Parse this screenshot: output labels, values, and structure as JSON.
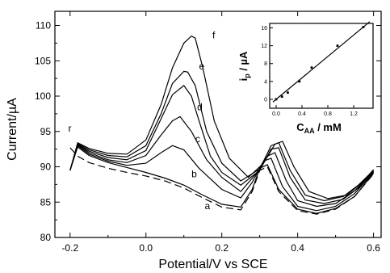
{
  "chart_data": [
    {
      "type": "line",
      "xlabel": "Potential/V vs SCE",
      "ylabel": "Current/µA",
      "xlim": [
        -0.24,
        0.62
      ],
      "ylim": [
        80,
        112
      ],
      "xticks": [
        -0.2,
        0.0,
        0.2,
        0.4,
        0.6
      ],
      "xtick_labels": [
        "-0.2",
        "0.0",
        "0.2",
        "0.4",
        "0.6"
      ],
      "yticks": [
        80,
        85,
        90,
        95,
        100,
        105,
        110
      ],
      "ytick_labels": [
        "80",
        "85",
        "90",
        "95",
        "100",
        "105",
        "110"
      ],
      "grid": false,
      "series": [
        {
          "label": "r",
          "dashed": true,
          "x": [
            -0.2,
            -0.18,
            -0.15,
            -0.1,
            -0.05,
            0.0,
            0.05,
            0.1,
            0.15,
            0.2,
            0.25,
            0.28,
            0.3,
            0.32,
            0.35,
            0.4,
            0.45,
            0.5,
            0.55,
            0.6
          ],
          "y": [
            92.7,
            91.5,
            90.6,
            89.8,
            89.2,
            88.7,
            88.0,
            87.0,
            85.6,
            84.3,
            83.9,
            86.5,
            89.5,
            90.0,
            86.5,
            83.8,
            83.3,
            84.0,
            85.8,
            89.0
          ]
        },
        {
          "label": "a",
          "dashed": false,
          "x": [
            -0.2,
            -0.18,
            -0.15,
            -0.1,
            -0.05,
            0.0,
            0.05,
            0.1,
            0.15,
            0.2,
            0.25,
            0.28,
            0.3,
            0.32,
            0.35,
            0.4,
            0.45,
            0.5,
            0.55,
            0.6
          ],
          "y": [
            89.5,
            92.8,
            91.6,
            90.6,
            89.9,
            89.2,
            88.4,
            87.4,
            86.0,
            84.7,
            84.3,
            86.8,
            89.8,
            90.3,
            86.8,
            84.0,
            83.4,
            84.1,
            85.8,
            89.1
          ]
        },
        {
          "label": "b",
          "dashed": false,
          "x": [
            -0.2,
            -0.18,
            -0.15,
            -0.1,
            -0.05,
            0.0,
            0.04,
            0.07,
            0.1,
            0.14,
            0.2,
            0.25,
            0.28,
            0.31,
            0.33,
            0.36,
            0.4,
            0.45,
            0.5,
            0.55,
            0.6
          ],
          "y": [
            89.5,
            93.0,
            91.8,
            90.8,
            90.2,
            90.5,
            92.0,
            93.0,
            92.4,
            89.8,
            86.8,
            85.6,
            87.8,
            90.8,
            91.2,
            87.2,
            84.4,
            83.8,
            84.4,
            86.2,
            89.2
          ]
        },
        {
          "label": "c",
          "dashed": false,
          "x": [
            -0.2,
            -0.18,
            -0.15,
            -0.1,
            -0.05,
            0.0,
            0.04,
            0.07,
            0.09,
            0.12,
            0.16,
            0.2,
            0.25,
            0.29,
            0.32,
            0.34,
            0.37,
            0.4,
            0.45,
            0.5,
            0.55,
            0.6
          ],
          "y": [
            89.5,
            93.1,
            92.0,
            91.0,
            90.6,
            91.6,
            94.5,
            96.5,
            97.1,
            95.0,
            91.0,
            88.5,
            86.5,
            89.0,
            91.5,
            92.0,
            88.0,
            85.2,
            84.4,
            84.8,
            86.6,
            89.3
          ]
        },
        {
          "label": "d",
          "dashed": false,
          "x": [
            -0.2,
            -0.18,
            -0.15,
            -0.1,
            -0.05,
            0.0,
            0.04,
            0.07,
            0.1,
            0.12,
            0.14,
            0.17,
            0.2,
            0.25,
            0.3,
            0.33,
            0.35,
            0.38,
            0.42,
            0.47,
            0.52,
            0.56,
            0.6
          ],
          "y": [
            89.5,
            93.2,
            92.2,
            91.3,
            91.0,
            92.3,
            96.8,
            100.2,
            101.5,
            100.0,
            96.5,
            91.5,
            89.2,
            87.4,
            89.5,
            92.5,
            92.7,
            88.5,
            85.3,
            84.8,
            85.4,
            87.0,
            89.4
          ]
        },
        {
          "label": "e",
          "dashed": false,
          "x": [
            -0.2,
            -0.18,
            -0.15,
            -0.1,
            -0.05,
            0.0,
            0.04,
            0.07,
            0.1,
            0.11,
            0.13,
            0.16,
            0.2,
            0.25,
            0.3,
            0.33,
            0.35,
            0.38,
            0.42,
            0.47,
            0.52,
            0.56,
            0.6
          ],
          "y": [
            89.5,
            93.3,
            92.4,
            91.6,
            91.4,
            93.0,
            97.5,
            101.8,
            103.5,
            103.4,
            101.5,
            95.0,
            90.5,
            88.0,
            89.7,
            93.0,
            93.4,
            89.5,
            86.0,
            85.2,
            85.8,
            87.4,
            89.5
          ]
        },
        {
          "label": "f",
          "dashed": false,
          "x": [
            -0.2,
            -0.18,
            -0.15,
            -0.1,
            -0.05,
            0.0,
            0.04,
            0.07,
            0.1,
            0.12,
            0.13,
            0.15,
            0.18,
            0.22,
            0.27,
            0.31,
            0.34,
            0.36,
            0.39,
            0.43,
            0.48,
            0.53,
            0.57,
            0.6
          ],
          "y": [
            89.5,
            93.4,
            92.6,
            91.9,
            91.8,
            93.8,
            98.8,
            104.0,
            107.5,
            108.5,
            108.2,
            104.0,
            96.5,
            91.2,
            88.5,
            90.5,
            93.2,
            93.6,
            90.0,
            86.5,
            85.5,
            86.0,
            87.8,
            89.6
          ]
        }
      ]
    },
    {
      "type": "scatter",
      "xlabel": "C",
      "xlabel_sub": "AA",
      "xlabel_suffix": " / mM",
      "ylabel": "i",
      "ylabel_sub": "p",
      "ylabel_suffix": " / µA",
      "xlim": [
        -0.1,
        1.5
      ],
      "ylim": [
        -2,
        17
      ],
      "xticks": [
        0.0,
        0.4,
        0.8,
        1.2
      ],
      "xtick_labels": [
        "0.0",
        "0.4",
        "0.8",
        "1.2"
      ],
      "yticks": [
        0,
        4,
        8,
        12,
        16
      ],
      "ytick_labels": [
        "0",
        "4",
        "8",
        "12",
        "16"
      ],
      "grid": false,
      "x": [
        0.0,
        0.09,
        0.18,
        0.36,
        0.55,
        0.95,
        1.35
      ],
      "y": [
        0.0,
        0.6,
        1.5,
        4.0,
        7.1,
        12.0,
        16.2
      ],
      "fit": {
        "slope": 12.0,
        "intercept": 0.0,
        "x_start": -0.05,
        "x_end": 1.45
      }
    }
  ]
}
